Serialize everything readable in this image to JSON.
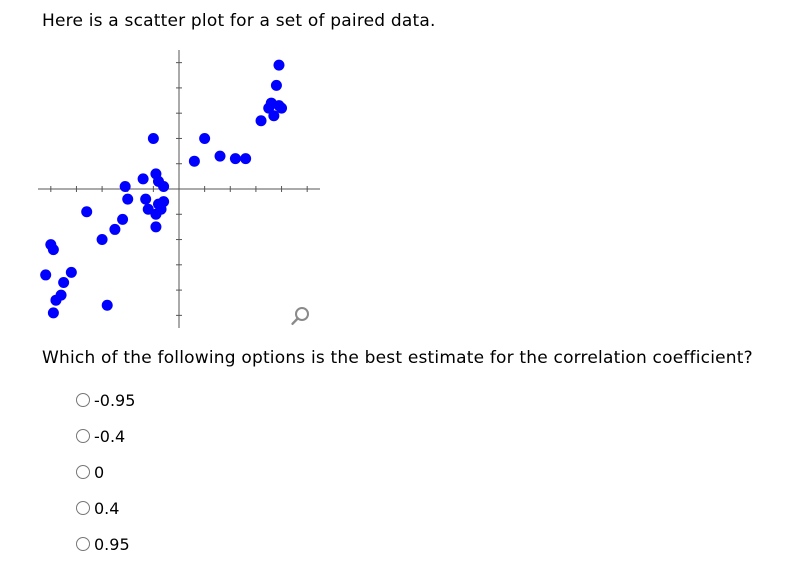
{
  "prompt": "Here is a scatter plot for a set of paired data.",
  "question": "Which of the following options is the best estimate for the correlation coefficient?",
  "options": [
    "-0.95",
    "-0.4",
    "0",
    "0.4",
    "0.95"
  ],
  "icons": {
    "zoom": "zoom-in-icon"
  },
  "chart_data": {
    "type": "scatter",
    "title": "",
    "xlabel": "",
    "ylabel": "",
    "xlim": [
      -5.5,
      5.5
    ],
    "ylim": [
      -5.5,
      5.5
    ],
    "x_ticks": [
      -5,
      -4,
      -3,
      -2,
      -1,
      1,
      2,
      3,
      4,
      5
    ],
    "y_ticks": [
      -5,
      -4,
      -3,
      -2,
      -1,
      1,
      2,
      3,
      4,
      5
    ],
    "tick_labels_shown": false,
    "grid": false,
    "point_color": "#0000ff",
    "points": [
      {
        "x": -5.0,
        "y": -2.2
      },
      {
        "x": -4.9,
        "y": -2.4
      },
      {
        "x": -5.2,
        "y": -3.4
      },
      {
        "x": -4.2,
        "y": -3.3
      },
      {
        "x": -4.5,
        "y": -3.7
      },
      {
        "x": -4.6,
        "y": -4.2
      },
      {
        "x": -4.8,
        "y": -4.4
      },
      {
        "x": -4.9,
        "y": -4.9
      },
      {
        "x": -3.6,
        "y": -0.9
      },
      {
        "x": -3.0,
        "y": -2.0
      },
      {
        "x": -2.5,
        "y": -1.6
      },
      {
        "x": -2.8,
        "y": -4.6
      },
      {
        "x": -2.2,
        "y": -1.2
      },
      {
        "x": -2.1,
        "y": 0.1
      },
      {
        "x": -2.0,
        "y": -0.4
      },
      {
        "x": -1.4,
        "y": 0.4
      },
      {
        "x": -1.3,
        "y": -0.4
      },
      {
        "x": -1.2,
        "y": -0.8
      },
      {
        "x": -0.9,
        "y": 0.6
      },
      {
        "x": -0.8,
        "y": 0.3
      },
      {
        "x": -0.8,
        "y": -0.6
      },
      {
        "x": -0.9,
        "y": -1.0
      },
      {
        "x": -0.9,
        "y": -1.5
      },
      {
        "x": -0.6,
        "y": -0.5
      },
      {
        "x": -0.7,
        "y": -0.8
      },
      {
        "x": -1.0,
        "y": 2.0
      },
      {
        "x": -0.6,
        "y": 0.1
      },
      {
        "x": 0.6,
        "y": 1.1
      },
      {
        "x": 1.0,
        "y": 2.0
      },
      {
        "x": 1.6,
        "y": 1.3
      },
      {
        "x": 2.2,
        "y": 1.2
      },
      {
        "x": 2.6,
        "y": 1.2
      },
      {
        "x": 3.2,
        "y": 2.7
      },
      {
        "x": 3.5,
        "y": 3.2
      },
      {
        "x": 3.6,
        "y": 3.4
      },
      {
        "x": 3.9,
        "y": 3.3
      },
      {
        "x": 3.8,
        "y": 4.1
      },
      {
        "x": 3.7,
        "y": 2.9
      },
      {
        "x": 4.0,
        "y": 3.2
      },
      {
        "x": 3.9,
        "y": 4.9
      }
    ]
  }
}
